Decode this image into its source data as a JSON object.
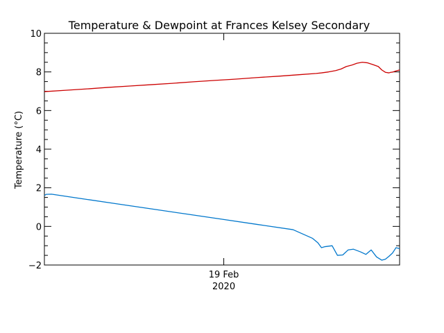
{
  "chart_data": {
    "type": "line",
    "title": "Temperature & Dewpoint at Frances Kelsey Secondary",
    "ylabel": "Temperature (°C)",
    "xlabel": "",
    "ylim": [
      -2.0,
      10.0
    ],
    "y_ticks": [
      -2,
      0,
      2,
      4,
      6,
      8,
      10
    ],
    "y_tick_labels": [
      "−2",
      "0",
      "2",
      "4",
      "6",
      "8",
      "10"
    ],
    "x_range": [
      0,
      1
    ],
    "x_ticks": [
      {
        "x": 0.505,
        "label_line1": "19 Feb",
        "label_line2": "2020"
      }
    ],
    "grid": false,
    "legend": "none",
    "series": [
      {
        "color": "#cc0000",
        "x": [
          0.0,
          0.06,
          0.12,
          0.18,
          0.24,
          0.3,
          0.36,
          0.42,
          0.48,
          0.54,
          0.6,
          0.66,
          0.72,
          0.765,
          0.78,
          0.8,
          0.82,
          0.835,
          0.85,
          0.865,
          0.88,
          0.895,
          0.91,
          0.925,
          0.94,
          0.95,
          0.96,
          0.97,
          0.975,
          0.98,
          0.99,
          1.0
        ],
        "values": [
          6.98,
          7.05,
          7.12,
          7.2,
          7.27,
          7.34,
          7.41,
          7.49,
          7.56,
          7.63,
          7.71,
          7.78,
          7.86,
          7.92,
          7.95,
          8.0,
          8.07,
          8.15,
          8.28,
          8.35,
          8.45,
          8.5,
          8.47,
          8.38,
          8.28,
          8.1,
          7.98,
          7.95,
          7.98,
          7.99,
          8.05,
          8.1
        ]
      },
      {
        "color": "#0077cc",
        "x": [
          0.0,
          0.005,
          0.02,
          0.1,
          0.2,
          0.3,
          0.4,
          0.5,
          0.6,
          0.7,
          0.755,
          0.77,
          0.78,
          0.79,
          0.81,
          0.825,
          0.84,
          0.855,
          0.87,
          0.89,
          0.905,
          0.92,
          0.935,
          0.95,
          0.96,
          0.97,
          0.98,
          0.99,
          1.0
        ],
        "values": [
          1.6,
          1.66,
          1.67,
          1.45,
          1.18,
          0.91,
          0.64,
          0.37,
          0.1,
          -0.17,
          -0.62,
          -0.85,
          -1.1,
          -1.05,
          -1.0,
          -1.5,
          -1.48,
          -1.22,
          -1.18,
          -1.32,
          -1.45,
          -1.22,
          -1.58,
          -1.75,
          -1.7,
          -1.55,
          -1.38,
          -1.1,
          -1.15
        ]
      }
    ]
  }
}
